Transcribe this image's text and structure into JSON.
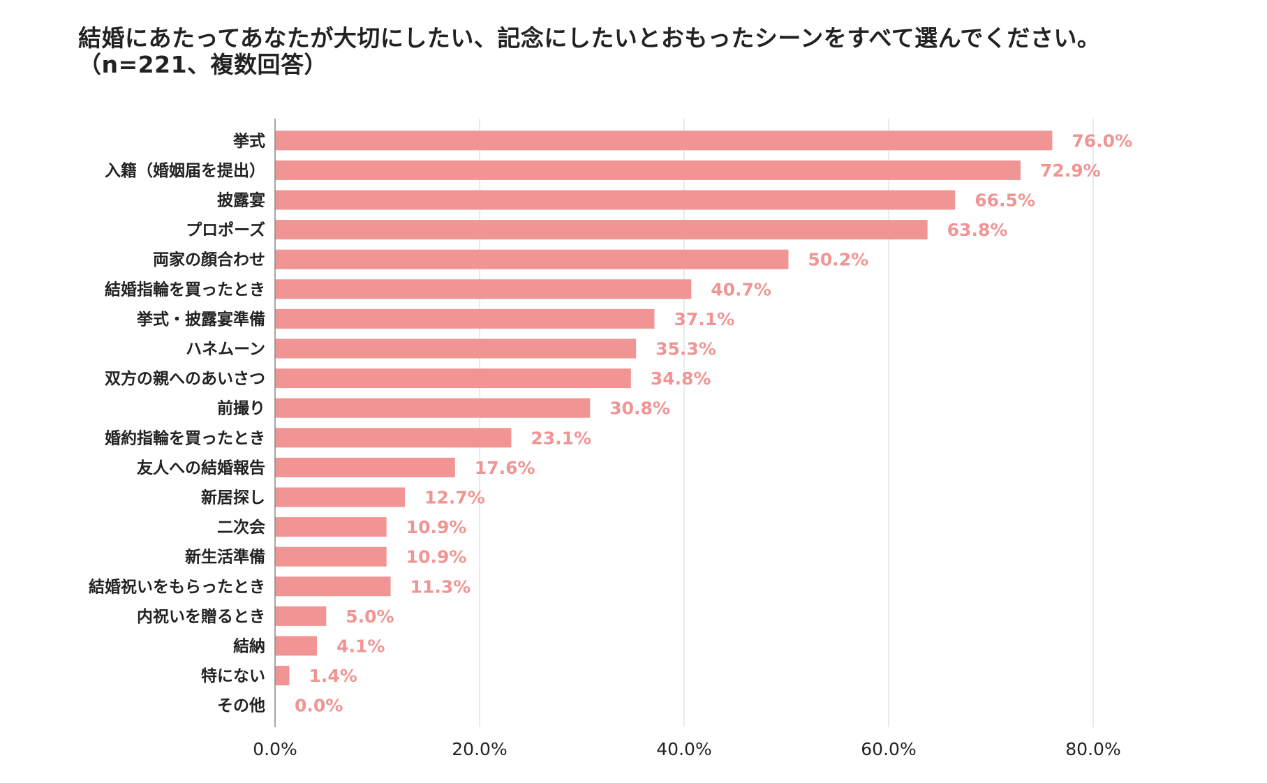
{
  "title": {
    "line1": "結婚にあたってあなたが大切にしたい、記念にしたいとおもったシーンをすべて選んでください。",
    "line2": "（n=221、複数回答）"
  },
  "colors": {
    "bar": "#f09593",
    "value_label": "#f09593",
    "grid": "#dddddd",
    "axis": "#888888"
  },
  "chart_data": {
    "type": "bar",
    "orientation": "horizontal",
    "title": "結婚にあたってあなたが大切にしたい、記念にしたいとおもったシーンをすべて選んでください。（n=221、複数回答）",
    "categories": [
      "挙式",
      "入籍（婚姻届を提出）",
      "披露宴",
      "プロポーズ",
      "両家の顔合わせ",
      "結婚指輪を買ったとき",
      "挙式・披露宴準備",
      "ハネムーン",
      "双方の親へのあいさつ",
      "前撮り",
      "婚約指輪を買ったとき",
      "友人への結婚報告",
      "新居探し",
      "二次会",
      "新生活準備",
      "結婚祝いをもらったとき",
      "内祝いを贈るとき",
      "結納",
      "特にない",
      "その他"
    ],
    "values": [
      76.0,
      72.9,
      66.5,
      63.8,
      50.2,
      40.7,
      37.1,
      35.3,
      34.8,
      30.8,
      23.1,
      17.6,
      12.7,
      10.9,
      10.9,
      11.3,
      5.0,
      4.1,
      1.4,
      0.0
    ],
    "value_labels": [
      "76.0%",
      "72.9%",
      "66.5%",
      "63.8%",
      "50.2%",
      "40.7%",
      "37.1%",
      "35.3%",
      "34.8%",
      "30.8%",
      "23.1%",
      "17.6%",
      "12.7%",
      "10.9%",
      "10.9%",
      "11.3%",
      "5.0%",
      "4.1%",
      "1.4%",
      "0.0%"
    ],
    "x_ticks": [
      0,
      20,
      40,
      60,
      80
    ],
    "x_tick_labels": [
      "0.0%",
      "20.0%",
      "40.0%",
      "60.0%",
      "80.0%"
    ],
    "xlim": [
      0,
      80
    ],
    "xlabel": "",
    "ylabel": "",
    "grid": true,
    "legend": "none"
  }
}
